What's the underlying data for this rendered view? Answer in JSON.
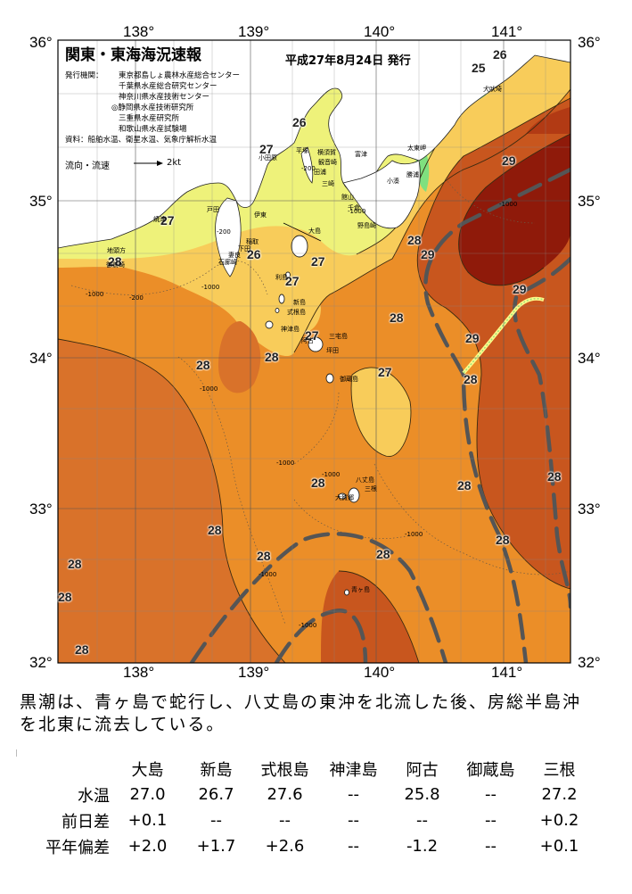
{
  "header": {
    "title": "関東・東海海況速報",
    "issue_date": "平成27年8月24日 発行",
    "issuer_label": "発行機関：",
    "issuers": [
      "東京都島しょ農林水産総合センター",
      "千葉県水産総合研究センター",
      "神奈川県水産技術センター",
      "◎静岡県水産技術研究所",
      "三重県水産研究所",
      "和歌山県水産試験場"
    ],
    "sources": "資料：船舶水温、衛星水温、気象庁解析水温",
    "flow_legend": "流向・流速",
    "flow_speed": "2kt"
  },
  "axes": {
    "top_lon": [
      "138°",
      "139°",
      "140°",
      "141°"
    ],
    "bottom_lon": [
      "138°",
      "139°",
      "140°",
      "141°"
    ],
    "left_lat": [
      "36°",
      "35°",
      "34°",
      "33°",
      "32°"
    ],
    "right_lat": [
      "36°",
      "35°",
      "34°",
      "33°",
      "32°"
    ]
  },
  "temperature_labels": [
    "26",
    "25",
    "26",
    "27",
    "29",
    "27",
    "28",
    "29",
    "27",
    "26",
    "27",
    "29",
    "28",
    "28",
    "29",
    "28",
    "27",
    "28",
    "27",
    "28",
    "28",
    "28",
    "28",
    "28",
    "28",
    "28",
    "28",
    "28",
    "28",
    "28"
  ],
  "depth_labels": [
    "-1000",
    "-200",
    "-1000",
    "-200",
    "-1000",
    "-1000",
    "-1000",
    "-1000",
    "-1000",
    "-1000",
    "-200",
    "-1000",
    "-1000"
  ],
  "place_names": {
    "oshima": "大島",
    "niijima": "新島",
    "toshima": "利島",
    "shikinejima": "式根島",
    "kozushima": "神津島",
    "miyakejima": "三宅島",
    "mikurajima": "御蔵島",
    "hachijojima": "八丈島",
    "aogashima": "青ヶ島",
    "ago": "阿古",
    "tsubota": "坪田",
    "sanne": "三根",
    "yaene": "大賀郷",
    "yokosuka": "横須賀",
    "kannonzaki": "観音崎",
    "taura": "田浦",
    "misaki": "三崎",
    "tateyama": "館山",
    "chikura": "千倉",
    "nojimazaki": "野島崎",
    "kominato": "小湊",
    "katsuura": "勝浦",
    "taitomisaki": "太東岬",
    "inubozaki": "犬吠埼",
    "futtsu": "富津",
    "hiratsuka": "平塚",
    "odawara": "小田原",
    "ito": "伊東",
    "inatori": "稲取",
    "shimoda": "下田",
    "irozaki": "石廊崎",
    "mera": "妻良",
    "heda": "戸田",
    "yaizu": "焼津",
    "omaezaki": "御前崎",
    "jizokata": "地頭方"
  },
  "description": "黒潮は、青ヶ島で蛇行し、八丈島の東沖を北流した後、房総半島沖を北東に流去している。",
  "stats": {
    "columns": [
      "大島",
      "新島",
      "式根島",
      "神津島",
      "阿古",
      "御蔵島",
      "三根"
    ],
    "rows": [
      {
        "label": "水温",
        "values": [
          "27.0",
          "26.7",
          "27.6",
          "--",
          "25.8",
          "--",
          "27.2"
        ]
      },
      {
        "label": "前日差",
        "values": [
          "+0.1",
          "--",
          "--",
          "--",
          "--",
          "--",
          "+0.2"
        ]
      },
      {
        "label": "平年偏差",
        "values": [
          "+2.0",
          "+1.7",
          "+2.6",
          "--",
          "-1.2",
          "--",
          "+0.1"
        ]
      }
    ]
  },
  "colors": {
    "land": "#ffffff",
    "sea_25": "#7fe07f",
    "sea_26": "#eef27a",
    "sea_27": "#f8cc5a",
    "sea_28": "#eb8e28",
    "sea_29": "#c8561e",
    "sea_30": "#8f1a0a",
    "kuroshio_axis": "#555555"
  }
}
